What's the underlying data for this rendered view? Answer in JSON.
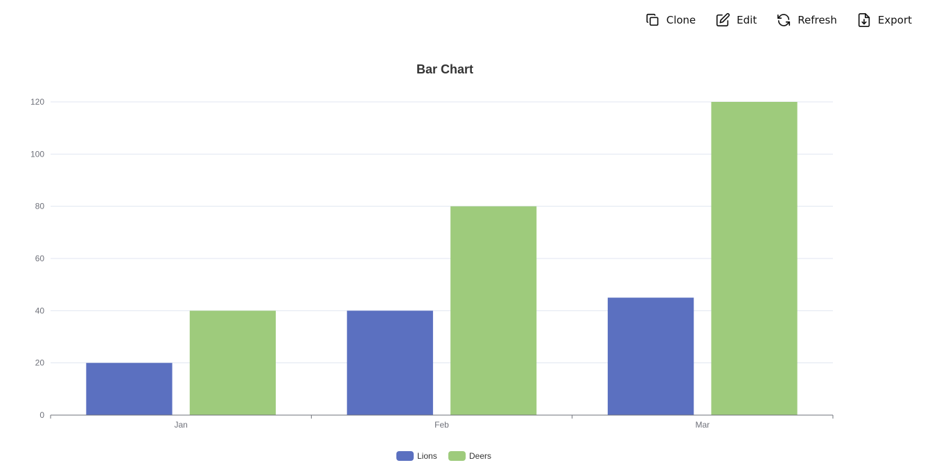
{
  "toolbar": {
    "clone_label": "Clone",
    "edit_label": "Edit",
    "refresh_label": "Refresh",
    "export_label": "Export"
  },
  "icons": {
    "clone": "clone-icon",
    "edit": "edit-icon",
    "refresh": "refresh-icon",
    "export": "export-icon"
  },
  "chart_data": {
    "type": "bar",
    "title": "Bar Chart",
    "categories": [
      "Jan",
      "Feb",
      "Mar"
    ],
    "series": [
      {
        "name": "Lions",
        "values": [
          20,
          40,
          45
        ],
        "color": "#5b70c0"
      },
      {
        "name": "Deers",
        "values": [
          40,
          80,
          120
        ],
        "color": "#9ecb7c"
      }
    ],
    "y_ticks": [
      0,
      20,
      40,
      60,
      80,
      100,
      120
    ],
    "ylim": [
      0,
      120
    ],
    "grid": true,
    "legend": "bottom-center"
  }
}
